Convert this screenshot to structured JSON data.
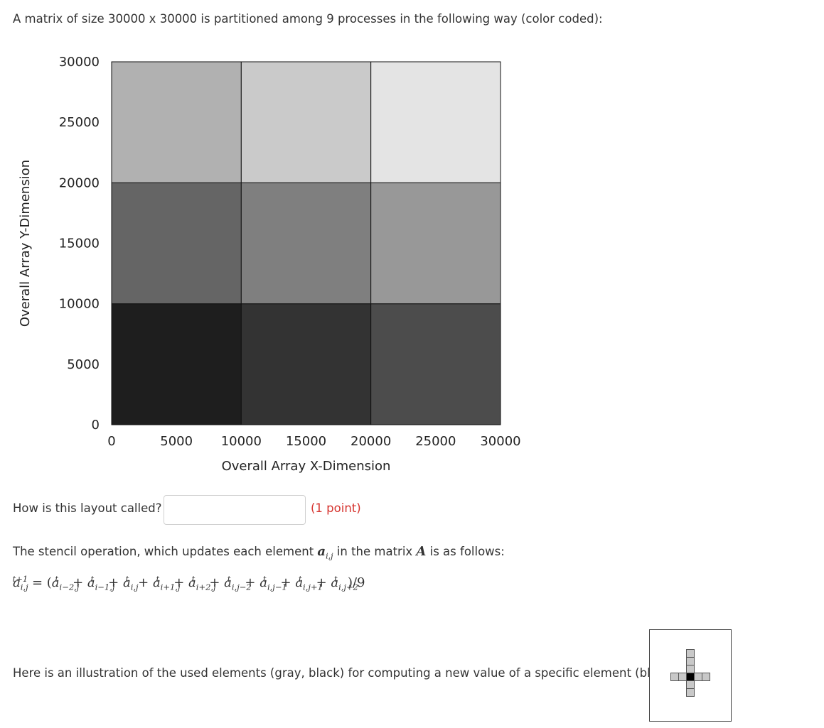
{
  "intro_text": "A matrix of size 30000 x 30000 is partitioned among 9 processes in the following way (color coded):",
  "chart_data": {
    "type": "heatmap",
    "xlabel": "Overall Array X-Dimension",
    "ylabel": "Overall Array Y-Dimension",
    "xlim": [
      0,
      30000
    ],
    "ylim": [
      0,
      30000
    ],
    "x_ticks": [
      "0",
      "5000",
      "10000",
      "15000",
      "20000",
      "25000",
      "30000"
    ],
    "y_ticks": [
      "0",
      "5000",
      "10000",
      "15000",
      "20000",
      "25000",
      "30000"
    ],
    "grid": false,
    "cells": [
      {
        "x0": 0,
        "x1": 10000,
        "y0": 0,
        "y1": 10000,
        "color": "#1e1e1e"
      },
      {
        "x0": 10000,
        "x1": 20000,
        "y0": 0,
        "y1": 10000,
        "color": "#333333"
      },
      {
        "x0": 20000,
        "x1": 30000,
        "y0": 0,
        "y1": 10000,
        "color": "#4c4c4c"
      },
      {
        "x0": 0,
        "x1": 10000,
        "y0": 10000,
        "y1": 20000,
        "color": "#656565"
      },
      {
        "x0": 10000,
        "x1": 20000,
        "y0": 10000,
        "y1": 20000,
        "color": "#7f7f7f"
      },
      {
        "x0": 20000,
        "x1": 30000,
        "y0": 10000,
        "y1": 20000,
        "color": "#989898"
      },
      {
        "x0": 0,
        "x1": 10000,
        "y0": 20000,
        "y1": 30000,
        "color": "#b1b1b1"
      },
      {
        "x0": 10000,
        "x1": 20000,
        "y0": 20000,
        "y1": 30000,
        "color": "#cacaca"
      },
      {
        "x0": 20000,
        "x1": 30000,
        "y0": 20000,
        "y1": 30000,
        "color": "#e4e4e4"
      }
    ]
  },
  "question": {
    "label": "How is this layout called?",
    "answer_value": "",
    "points": "(1 point)"
  },
  "stencil": {
    "intro_before": "The stencil operation, which updates each element ",
    "intro_element": "a",
    "intro_element_sub": "i,j",
    "intro_middle": " in the matrix ",
    "intro_matrix": "A",
    "intro_after": " is as follows:",
    "illustration_text": "Here is an illustration of the used elements (gray, black) for computing a new value of a specific element (black):"
  },
  "colors": {
    "points": "#d6332e",
    "stencil_used": "#c8c8c8",
    "stencil_center": "#000000"
  }
}
